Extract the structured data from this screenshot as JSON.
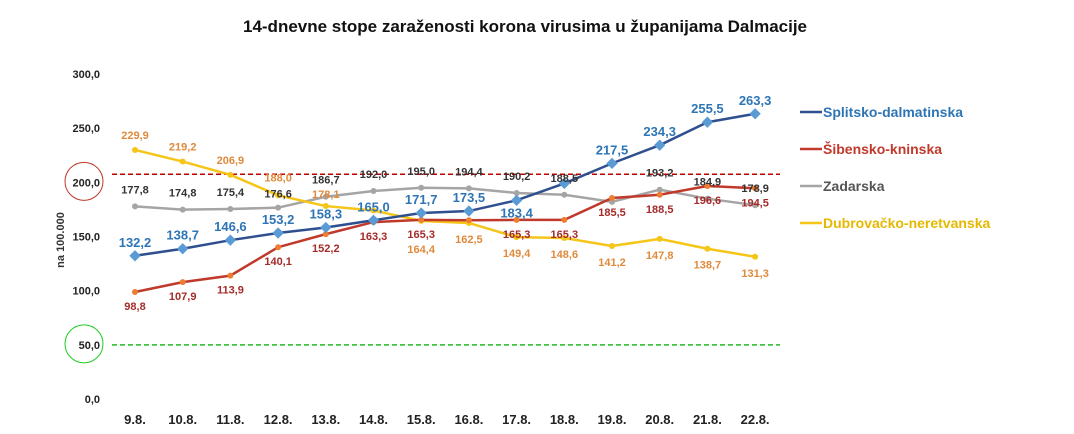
{
  "chart_data": {
    "type": "line",
    "title": "14-dnevne stope zaraženosti korona virusima u županijama Dalmacije",
    "ylabel": "na 100.000",
    "ylim": [
      0,
      300
    ],
    "yticks": [
      "0,0",
      "50,0",
      "100,0",
      "150,0",
      "200,0",
      "250,0",
      "300,0"
    ],
    "categories": [
      "9.8.",
      "10.8.",
      "11.8.",
      "12.8.",
      "13.8.",
      "14.8.",
      "15.8.",
      "16.8.",
      "17.8.",
      "18.8.",
      "19.8.",
      "20.8.",
      "21.8.",
      "22.8."
    ],
    "reference_lines": [
      {
        "value": 207.5,
        "color": "#c00000"
      },
      {
        "value": 50,
        "color": "#22bb22"
      }
    ],
    "legend": "right",
    "series": [
      {
        "name": "Splitsko-dalmatinska",
        "color": "#2f4f8f",
        "marker_color": "#5b9bd5",
        "label_color": "#2e75b6",
        "values": [
          132.2,
          138.7,
          146.6,
          153.2,
          158.3,
          165.0,
          171.7,
          173.5,
          183.4,
          199.0,
          217.5,
          234.3,
          255.5,
          263.3
        ],
        "labels": [
          "132,2",
          "138,7",
          "146,6",
          "153,2",
          "158,3",
          "165,0",
          "171,7",
          "173,5",
          "183,4",
          "",
          "217,5",
          "234,3",
          "255,5",
          "263,3"
        ]
      },
      {
        "name": "Šibensko-kninska",
        "color": "#c0392b",
        "marker_color": "#ed7d31",
        "label_color": "#a52a2a",
        "values": [
          98.8,
          107.9,
          113.9,
          140.1,
          152.2,
          163.3,
          165.3,
          165.0,
          165.3,
          165.3,
          185.5,
          188.5,
          196.6,
          194.5
        ],
        "labels": [
          "98,8",
          "107,9",
          "113,9",
          "140,1",
          "152,2",
          "163,3",
          "165,3",
          "",
          "165,3",
          "165,3",
          "185,5",
          "188,5",
          "196,6",
          "194,5"
        ]
      },
      {
        "name": "Zadarska",
        "color": "#a5a5a5",
        "marker_color": "#a5a5a5",
        "label_color": "#333333",
        "values": [
          177.8,
          174.8,
          175.4,
          176.6,
          186.7,
          192.0,
          195.0,
          194.4,
          190.2,
          188.5,
          182.0,
          193.2,
          184.9,
          178.9
        ],
        "labels": [
          "177,8",
          "174,8",
          "175,4",
          "176,6",
          "186,7",
          "192,0",
          "195,0",
          "194,4",
          "190,2",
          "188,5",
          "",
          "193,2",
          "184,9",
          "178,9"
        ]
      },
      {
        "name": "Dubrovačko-neretvanska",
        "color": "#f5c518",
        "marker_color": "#f5c518",
        "label_color": "#e08a3c",
        "values": [
          229.9,
          219.2,
          206.9,
          188.0,
          178.1,
          174.0,
          164.4,
          162.5,
          149.4,
          148.6,
          141.2,
          147.8,
          138.7,
          131.3
        ],
        "labels": [
          "229,9",
          "219,2",
          "206,9",
          "188,0",
          "178,1",
          "",
          "164,4",
          "162,5",
          "149,4",
          "148,6",
          "141,2",
          "147,8",
          "138,7",
          "131,3"
        ]
      }
    ]
  }
}
